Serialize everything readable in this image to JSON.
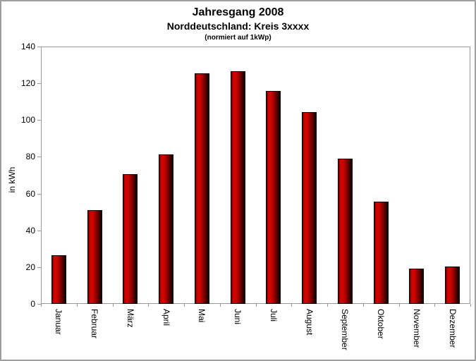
{
  "chart_data": {
    "type": "bar",
    "title": "Jahresgang 2008",
    "subtitle": "Norddeutschland: Kreis 3xxxx",
    "annotation": "(normiert auf 1kWp)",
    "ylabel": "in kWh",
    "xlabel": "",
    "categories": [
      "Januar",
      "Februar",
      "März",
      "April",
      "Mai",
      "Juni",
      "Juli",
      "August",
      "September",
      "Oktober",
      "November",
      "Dezember"
    ],
    "values": [
      26.5,
      51,
      70.5,
      81.5,
      125.5,
      126.5,
      116,
      104.5,
      79,
      55.5,
      19,
      20.5
    ],
    "ylim": [
      0,
      140
    ],
    "yticks": [
      0,
      20,
      40,
      60,
      80,
      100,
      120,
      140
    ],
    "grid": "off",
    "legend": "none",
    "bar_color": "#cc0000",
    "bar_gradient_edge": "#0f0000",
    "axis_color": "#999999",
    "background_color": "#ffffff"
  }
}
